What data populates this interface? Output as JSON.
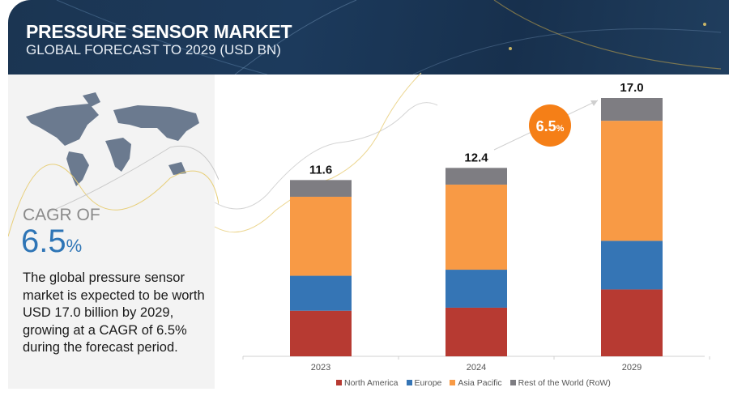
{
  "header": {
    "title": "PRESSURE SENSOR MARKET",
    "subtitle": "GLOBAL FORECAST TO 2029 (USD BN)"
  },
  "left_panel": {
    "cagr_label": "CAGR OF",
    "cagr_value": "6.5",
    "cagr_unit": "%",
    "description": "The global pressure sensor market is expected to be worth USD 17.0 billion by 2029, growing at a CAGR of 6.5% during the forecast period."
  },
  "chart_data": {
    "type": "bar",
    "stacked": true,
    "categories": [
      "2023",
      "2024",
      "2029"
    ],
    "series": [
      {
        "name": "North America",
        "values": [
          3.0,
          3.2,
          4.4
        ],
        "color": "#b73a32"
      },
      {
        "name": "Europe",
        "values": [
          2.3,
          2.5,
          3.2
        ],
        "color": "#3575b5"
      },
      {
        "name": "Asia Pacific",
        "values": [
          5.2,
          5.6,
          7.9
        ],
        "color": "#f89a45"
      },
      {
        "name": "Rest of the World (RoW)",
        "values": [
          1.1,
          1.1,
          1.5
        ],
        "color": "#7e7d82"
      }
    ],
    "totals": [
      "11.6",
      "12.4",
      "17.0"
    ],
    "cagr_badge": {
      "value": "6.5",
      "unit": "%",
      "color": "#f57f17"
    },
    "legend_position": "bottom",
    "grid": false,
    "ylim": [
      0,
      17
    ]
  }
}
